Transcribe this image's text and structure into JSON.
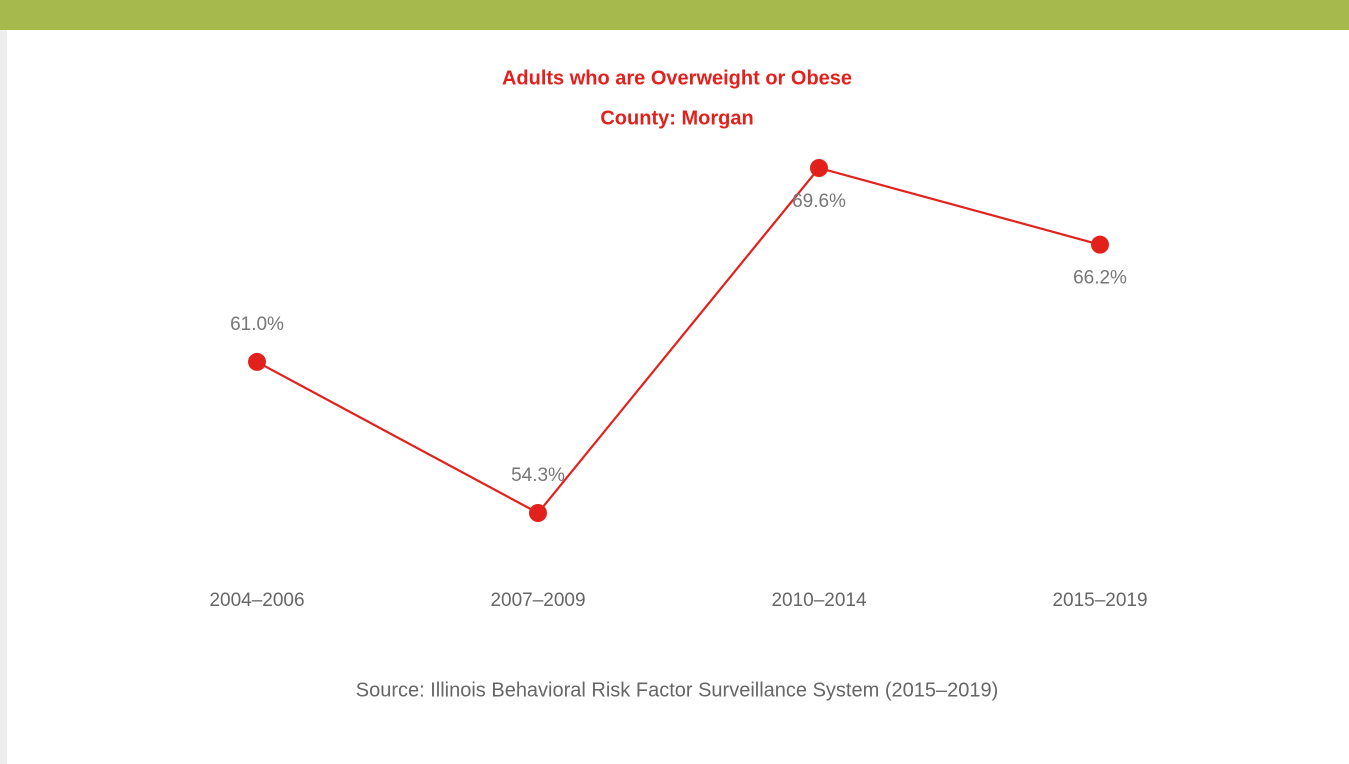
{
  "chart_data": {
    "type": "line",
    "title": "Adults who are Overweight or Obese",
    "subtitle": "County: Morgan",
    "categories": [
      "2004–2006",
      "2007–2009",
      "2010–2014",
      "2015–2019"
    ],
    "values": [
      61.0,
      54.3,
      69.6,
      66.2
    ],
    "value_labels": [
      "61.0%",
      "54.3%",
      "69.6%",
      "66.2%"
    ],
    "color": "#e3211c",
    "source": "Source: Illinois Behavioral Risk Factor Surveillance System (2015–2019)"
  }
}
